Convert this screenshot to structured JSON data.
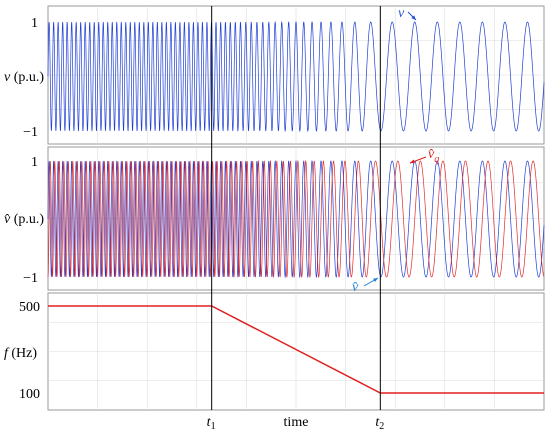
{
  "chart_data": [
    {
      "type": "line",
      "panel": "top",
      "ylabel_sym": "v",
      "ylabel_unit": " (p.u.)",
      "yticks": [
        "1",
        "−1"
      ],
      "ylim": [
        -1,
        1
      ],
      "series": [
        {
          "name": "v",
          "color": "#1f3fd6",
          "amplitude": 1,
          "phase_lag": 0
        }
      ],
      "annotations": [
        {
          "text": "v",
          "target": "v"
        }
      ]
    },
    {
      "type": "line",
      "panel": "middle",
      "ylabel_sym": "v̂",
      "ylabel_unit": " (p.u.)",
      "yticks": [
        "1",
        "−1"
      ],
      "ylim": [
        -1,
        1
      ],
      "series": [
        {
          "name": "v̂",
          "color": "#1f3fd6",
          "amplitude": 1,
          "phase_lag": 0
        },
        {
          "name": "v̂q",
          "color": "#e02020",
          "amplitude": 1,
          "phase_lag": 1.5708
        }
      ],
      "annotations": [
        {
          "text": "v̂",
          "sub": "q",
          "target": "v̂q"
        },
        {
          "text": "v̂",
          "target": "v̂"
        }
      ]
    },
    {
      "type": "line",
      "panel": "bottom",
      "ylabel_sym": "f",
      "ylabel_unit": " (Hz)",
      "yticks": [
        {
          "value": 500,
          "label": "500"
        },
        {
          "value": 100,
          "label": "100"
        }
      ],
      "ylim": [
        60,
        560
      ],
      "series": [
        {
          "name": "f",
          "color": "#e02020",
          "x": [
            0,
            0.33,
            0.67,
            1.0
          ],
          "y": [
            500,
            500,
            100,
            100
          ]
        }
      ]
    }
  ],
  "xaxis": {
    "label": "time",
    "ticks": [
      {
        "name": "t1",
        "main": "t",
        "sub": "1",
        "pos": 0.33
      },
      {
        "name": "t2",
        "main": "t",
        "sub": "2",
        "pos": 0.67
      }
    ]
  },
  "colors": {
    "blue": "#1f3fd6",
    "red": "#e02020",
    "grid": "#dcdcdc",
    "frame": "#9a9a9a"
  },
  "grid": true
}
